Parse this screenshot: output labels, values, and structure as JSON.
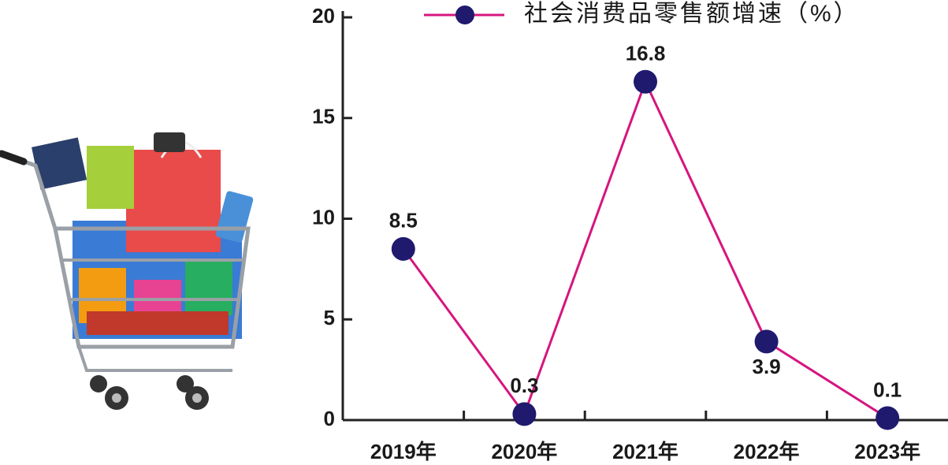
{
  "chart_data": {
    "type": "line",
    "categories": [
      "2019年",
      "2020年",
      "2021年",
      "2022年",
      "2023年"
    ],
    "series": [
      {
        "name": "社会消费品零售额增速（%）",
        "color": "#d6157f",
        "marker_color": "#1f1a6e",
        "values": [
          8.5,
          0.3,
          16.8,
          3.9,
          0.1
        ]
      }
    ],
    "ylim": [
      0,
      20
    ],
    "yticks": [
      0,
      5,
      10,
      15,
      20
    ],
    "grid": false,
    "legend": "top"
  }
}
